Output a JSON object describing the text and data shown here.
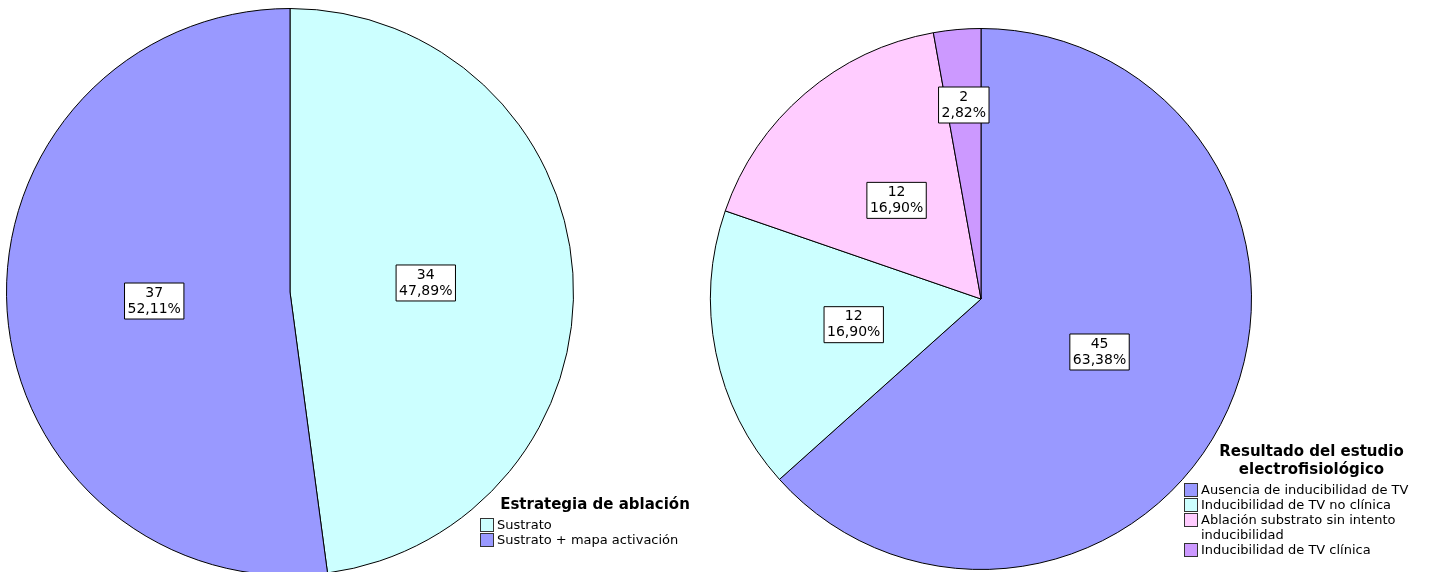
{
  "chart_data": [
    {
      "type": "pie",
      "legend_title": "Estrategia de ablación",
      "legend": "bottom right",
      "categories": [
        "Sustrato",
        "Sustrato + mapa activación"
      ],
      "values": [
        34,
        37
      ],
      "colors": [
        "#ccffff",
        "#9999ff"
      ],
      "value_labels": [
        "34\n47,89%",
        "37\n52,11%"
      ]
    },
    {
      "type": "pie",
      "legend_title": "Resultado del estudio electrofisiológico",
      "legend": "bottom right",
      "categories": [
        "Ausencia de inducibilidad de TV",
        "Inducibilidad de TV no clínica",
        "Ablación substrato sin intento inducibilidad",
        "Inducibilidad de TV clínica"
      ],
      "values": [
        45,
        12,
        12,
        2
      ],
      "colors": [
        "#9999ff",
        "#ccffff",
        "#ffccff",
        "#cc99ff"
      ],
      "value_labels": [
        "45\n63,38%",
        "12\n16,90%",
        "12\n16,90%",
        "2\n2,82%"
      ]
    }
  ]
}
